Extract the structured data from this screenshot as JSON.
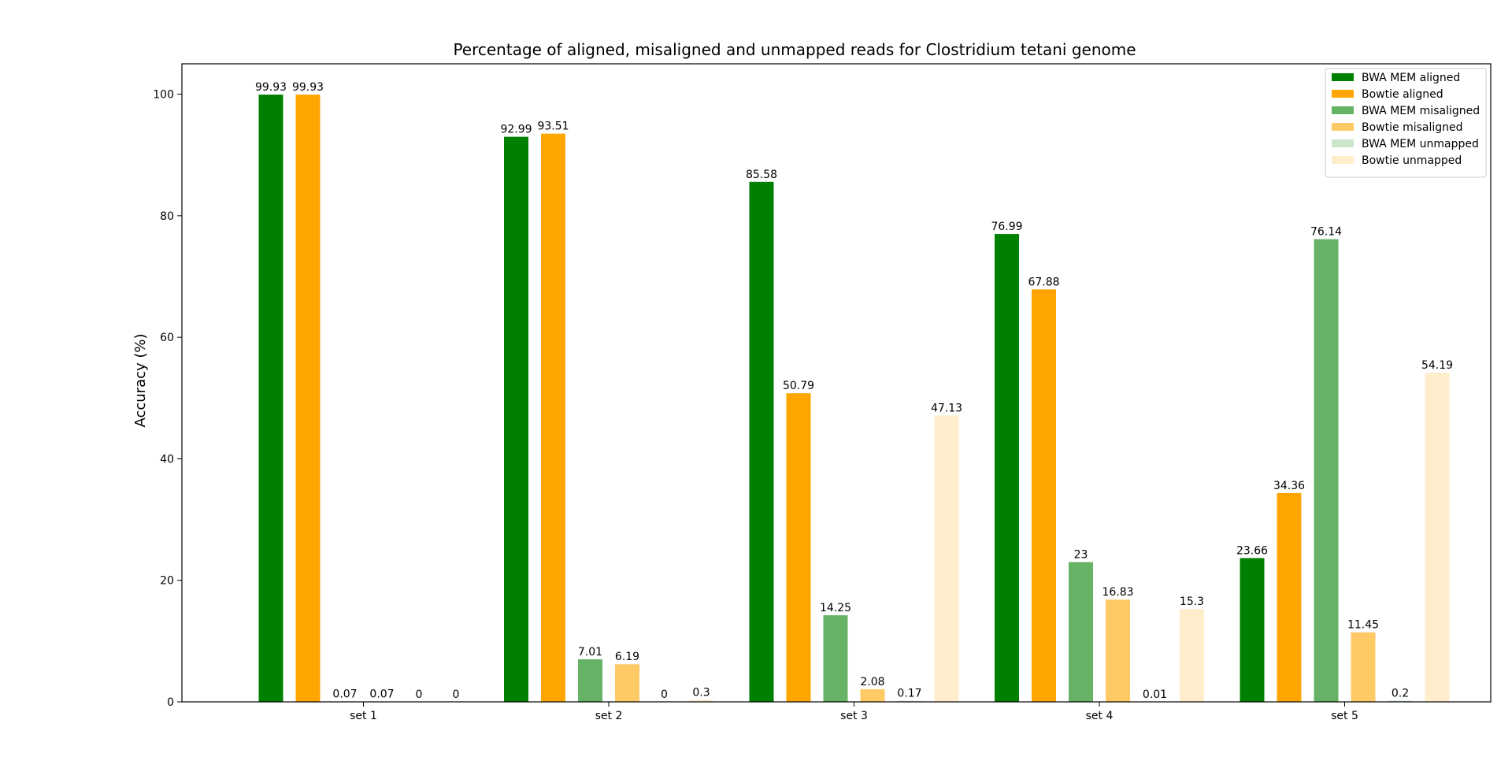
{
  "chart_data": {
    "type": "bar",
    "title": "Percentage of aligned, misaligned and unmapped reads for Clostridium tetani genome",
    "xlabel": "",
    "ylabel": "Accuracy (%)",
    "ylim": [
      0,
      105
    ],
    "yticks": [
      0,
      20,
      40,
      60,
      80,
      100
    ],
    "grid": false,
    "legend_position": "top-right",
    "categories": [
      "set 1",
      "set 2",
      "set 3",
      "set 4",
      "set 5"
    ],
    "series": [
      {
        "name": "BWA MEM aligned",
        "color": "#008000",
        "opacity": 1.0,
        "values": [
          99.93,
          92.99,
          85.58,
          76.99,
          23.66
        ],
        "labels": [
          "99.93",
          "92.99",
          "85.58",
          "76.99",
          "23.66"
        ]
      },
      {
        "name": "Bowtie aligned",
        "color": "#ffa500",
        "opacity": 1.0,
        "values": [
          99.93,
          93.51,
          50.79,
          67.88,
          34.36
        ],
        "labels": [
          "99.93",
          "93.51",
          "50.79",
          "67.88",
          "34.36"
        ]
      },
      {
        "name": "BWA MEM misaligned",
        "color": "#008000",
        "opacity": 0.6,
        "values": [
          0.07,
          7.01,
          14.25,
          23,
          76.14
        ],
        "labels": [
          "0.07",
          "7.01",
          "14.25",
          "23",
          "76.14"
        ]
      },
      {
        "name": "Bowtie misaligned",
        "color": "#ffa500",
        "opacity": 0.6,
        "values": [
          0.07,
          6.19,
          2.08,
          16.83,
          11.45
        ],
        "labels": [
          "0.07",
          "6.19",
          "2.08",
          "16.83",
          "11.45"
        ]
      },
      {
        "name": "BWA MEM unmapped",
        "color": "#008000",
        "opacity": 0.2,
        "values": [
          0,
          0,
          0.17,
          0.01,
          0.2
        ],
        "labels": [
          "0",
          "0",
          "0.17",
          "0.01",
          "0.2"
        ]
      },
      {
        "name": "Bowtie unmapped",
        "color": "#ffa500",
        "opacity": 0.2,
        "values": [
          0,
          0.3,
          47.13,
          15.3,
          54.19
        ],
        "labels": [
          "0",
          "0.3",
          "47.13",
          "15.3",
          "54.19"
        ]
      }
    ]
  }
}
